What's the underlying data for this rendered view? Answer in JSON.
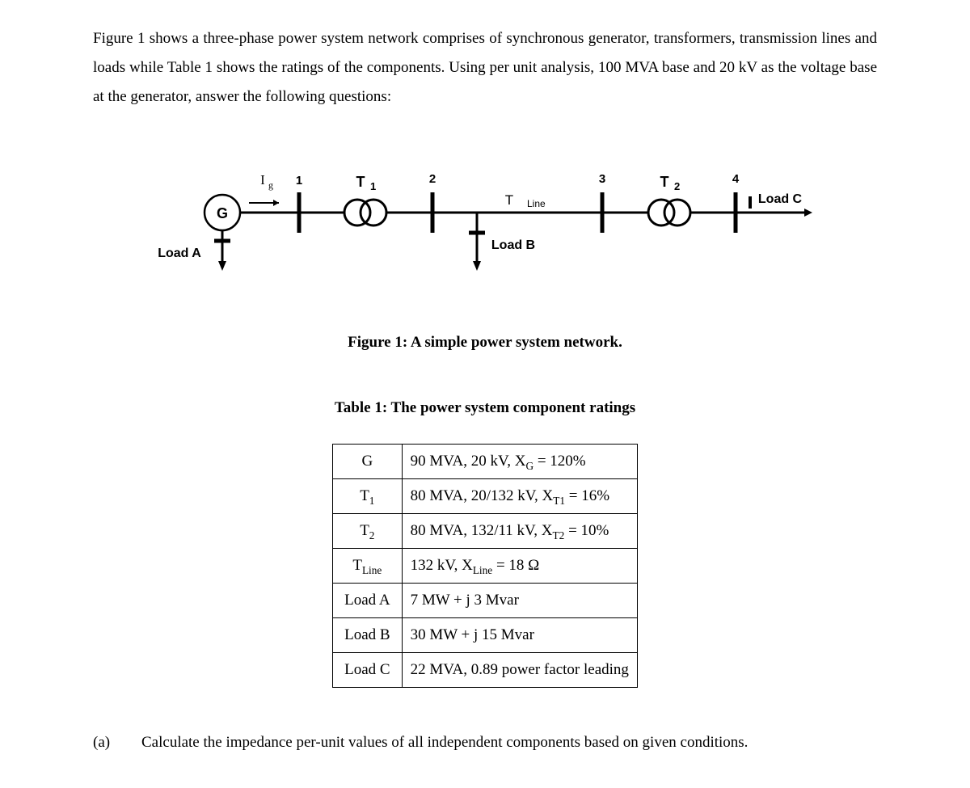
{
  "intro": "Figure 1 shows a three-phase power system network comprises of synchronous generator, transformers, transmission lines and loads while Table 1 shows the ratings of the components. Using per unit analysis, 100 MVA base and 20 kV as the voltage base at the generator, answer the following questions:",
  "diagram": {
    "labels": {
      "G": "G",
      "Ig": "Ig",
      "bus1": "1",
      "bus2": "2",
      "bus3": "3",
      "bus4": "4",
      "T1": "T1",
      "T2": "T2",
      "TLine": "TLine",
      "LoadA": "Load A",
      "LoadB": "Load B",
      "LoadC": "Load C"
    },
    "colors": {
      "line": "#000000",
      "bg": "#ffffff"
    }
  },
  "figureCaption": "Figure 1: A simple power system network.",
  "tableCaption": "Table 1: The power system component ratings",
  "table": {
    "rows": [
      {
        "component": "G",
        "rating": "90 MVA, 20 kV, XG = 120%",
        "hasSub": true,
        "subKey": "G"
      },
      {
        "component": "T1",
        "compSub": "1",
        "rating": "80 MVA, 20/132 kV, XT1 = 16%",
        "hasSub": true,
        "subKey": "T1"
      },
      {
        "component": "T2",
        "compSub": "2",
        "rating": "80 MVA, 132/11 kV, XT2 = 10%",
        "hasSub": true,
        "subKey": "T2"
      },
      {
        "component": "TLine",
        "compSub": "Line",
        "rating": "132 kV, XLine = 18 Ω",
        "hasSub": true,
        "subKey": "Line"
      },
      {
        "component": "Load A",
        "rating": "7 MW + j 3 Mvar"
      },
      {
        "component": "Load B",
        "rating": "30 MW + j 15 Mvar"
      },
      {
        "component": "Load C",
        "rating": "22 MVA, 0.89 power factor leading"
      }
    ]
  },
  "question": {
    "label": "(a)",
    "text": "Calculate the impedance per-unit values of all independent components based on given conditions."
  }
}
